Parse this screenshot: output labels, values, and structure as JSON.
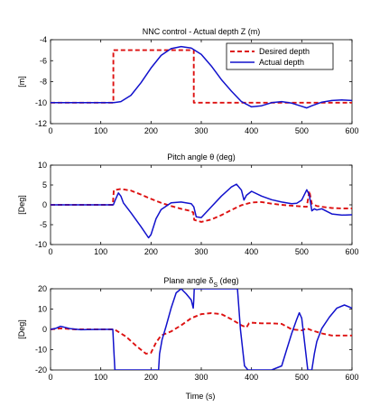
{
  "colors": {
    "desired": "#dd1111",
    "actual": "#1111cc",
    "axes": "#000000",
    "background": "#ffffff"
  },
  "xlabel": "Time (s)",
  "chart_data": [
    {
      "type": "line",
      "title": "NNC control - Actual depth Z (m)",
      "title_parts": [
        "NNC control - Actual depth Z (m)"
      ],
      "ylabel": "[m]",
      "xlabel": "",
      "xlim": [
        0,
        600
      ],
      "ylim": [
        -12,
        -4
      ],
      "xticks": [
        0,
        100,
        200,
        300,
        400,
        500,
        600
      ],
      "yticks": [
        -12,
        -10,
        -8,
        -6,
        -4
      ],
      "grid": false,
      "legend": {
        "placement": "top-right",
        "entries": [
          "Desired depth",
          "Actual depth"
        ]
      },
      "series": [
        {
          "name": "Desired depth",
          "style": "dashed",
          "color": "#dd1111",
          "x": [
            0,
            125,
            125,
            285,
            285,
            600
          ],
          "y": [
            -10,
            -10,
            -5,
            -5,
            -10,
            -10
          ]
        },
        {
          "name": "Actual depth",
          "style": "solid",
          "color": "#1111cc",
          "x": [
            0,
            125,
            140,
            160,
            180,
            200,
            220,
            240,
            260,
            280,
            300,
            320,
            340,
            360,
            380,
            400,
            420,
            440,
            460,
            480,
            500,
            510,
            520,
            540,
            560,
            580,
            600
          ],
          "y": [
            -10,
            -10,
            -9.9,
            -9.3,
            -8.1,
            -6.7,
            -5.5,
            -4.85,
            -4.65,
            -4.8,
            -5.4,
            -6.5,
            -7.8,
            -8.9,
            -9.9,
            -10.4,
            -10.3,
            -10.0,
            -9.9,
            -10.05,
            -10.35,
            -10.5,
            -10.3,
            -9.95,
            -9.8,
            -9.75,
            -9.8
          ]
        }
      ]
    },
    {
      "type": "line",
      "title": "Pitch angle θ (deg)",
      "title_parts": [
        "Pitch angle θ (deg)"
      ],
      "ylabel": "[Deg]",
      "xlabel": "",
      "xlim": [
        0,
        600
      ],
      "ylim": [
        -10,
        10
      ],
      "xticks": [
        0,
        100,
        200,
        300,
        400,
        500,
        600
      ],
      "yticks": [
        -10,
        -5,
        0,
        5,
        10
      ],
      "grid": false,
      "series": [
        {
          "name": "",
          "style": "dashed",
          "color": "#dd1111",
          "x": [
            0,
            124,
            126,
            140,
            160,
            180,
            200,
            220,
            240,
            260,
            280,
            284,
            286,
            300,
            320,
            340,
            360,
            380,
            400,
            420,
            440,
            460,
            480,
            500,
            510,
            515,
            520,
            530,
            540,
            560,
            580,
            600
          ],
          "y": [
            0,
            0,
            3.7,
            4.0,
            3.6,
            2.6,
            1.5,
            0.5,
            -0.3,
            -1.0,
            -1.6,
            -1.9,
            -3.8,
            -4.3,
            -3.7,
            -2.6,
            -1.3,
            -0.1,
            0.6,
            0.7,
            0.3,
            0,
            -0.2,
            -0.4,
            -0.5,
            3.5,
            0.3,
            -0.3,
            -0.5,
            -0.8,
            -0.9,
            -0.9
          ]
        },
        {
          "name": "",
          "style": "solid",
          "color": "#1111cc",
          "x": [
            0,
            125,
            128,
            135,
            140,
            145,
            160,
            180,
            195,
            200,
            210,
            220,
            240,
            260,
            280,
            285,
            290,
            300,
            320,
            340,
            360,
            370,
            380,
            385,
            390,
            400,
            420,
            440,
            460,
            480,
            490,
            500,
            510,
            515,
            520,
            525,
            530,
            540,
            560,
            580,
            600
          ],
          "y": [
            0,
            0,
            1.0,
            3.0,
            2.2,
            0.5,
            -2.0,
            -5.5,
            -8.3,
            -7.5,
            -3.5,
            -1.2,
            0.5,
            0.7,
            0.3,
            -0.5,
            -3.0,
            -3.2,
            -0.5,
            2.2,
            4.5,
            5.2,
            3.7,
            1.2,
            2.4,
            3.4,
            2.2,
            1.3,
            0.7,
            0.3,
            0.4,
            1.2,
            3.8,
            2.5,
            -1.5,
            -1.0,
            -1.3,
            -1.0,
            -2.3,
            -2.6,
            -2.5
          ]
        }
      ]
    },
    {
      "type": "line",
      "title": "Plane angle δS (deg)",
      "title_parts": [
        "Plane angle δ",
        "S",
        " (deg)"
      ],
      "ylabel": "[Deg]",
      "xlabel": "Time (s)",
      "xlim": [
        0,
        600
      ],
      "ylim": [
        -20,
        20
      ],
      "xticks": [
        0,
        100,
        200,
        300,
        400,
        500,
        600
      ],
      "yticks": [
        -20,
        -10,
        0,
        10,
        20
      ],
      "grid": false,
      "series": [
        {
          "name": "",
          "style": "dashed",
          "color": "#dd1111",
          "x": [
            0,
            20,
            50,
            100,
            124,
            130,
            150,
            170,
            190,
            200,
            210,
            220,
            240,
            260,
            280,
            300,
            320,
            340,
            360,
            380,
            390,
            395,
            400,
            420,
            440,
            460,
            480,
            500,
            510,
            520,
            540,
            560,
            580,
            600
          ],
          "y": [
            0,
            0.5,
            0,
            0,
            0,
            -0.5,
            -3.5,
            -8.0,
            -12.0,
            -11.5,
            -6.5,
            -3.0,
            -1.0,
            2.0,
            5.5,
            7.5,
            8.0,
            7.5,
            5.0,
            2.0,
            1.0,
            3.0,
            3.3,
            3.0,
            3.0,
            2.7,
            0,
            -0.5,
            0.5,
            -0.5,
            -2.0,
            -3.0,
            -3.0,
            -3.0
          ]
        },
        {
          "name": "",
          "style": "solid",
          "color": "#1111cc",
          "x": [
            0,
            10,
            20,
            40,
            60,
            100,
            124,
            126,
            128,
            131,
            215,
            217,
            222,
            230,
            240,
            250,
            260,
            270,
            280,
            284,
            285,
            286,
            288,
            372,
            378,
            386,
            393,
            400,
            420,
            440,
            460,
            470,
            480,
            490,
            495,
            500,
            505,
            512,
            515,
            520,
            525,
            530,
            540,
            555,
            570,
            585,
            600
          ],
          "y": [
            0,
            0.5,
            1.5,
            0.3,
            -0.2,
            0,
            0,
            -10,
            -20,
            -20,
            -20,
            -12,
            -5.0,
            1.5,
            10.5,
            18.0,
            20,
            17.5,
            14.5,
            10.5,
            14.5,
            20,
            20,
            20,
            0,
            -18.0,
            -20,
            -20,
            -20,
            -20,
            -18,
            -10,
            -2,
            5,
            8.2,
            5.5,
            -5,
            -20,
            -20,
            -20,
            -12,
            -6,
            0.5,
            6.0,
            10.5,
            12.0,
            10.5
          ]
        }
      ]
    }
  ]
}
